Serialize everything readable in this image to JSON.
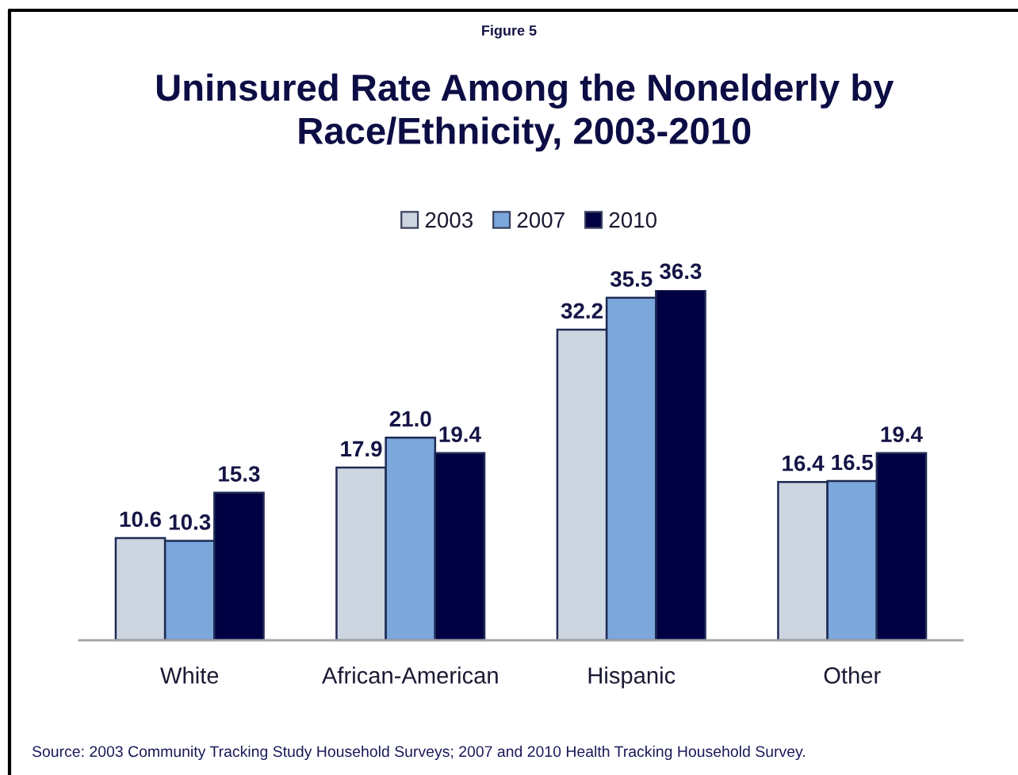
{
  "chart_data": {
    "type": "bar",
    "subtitle": "Figure 5",
    "title": "Uninsured Rate Among the Nonelderly by\nRace/Ethnicity, 2003-2010",
    "categories": [
      "White",
      "African-American",
      "Hispanic",
      "Other"
    ],
    "series": [
      {
        "name": "2003",
        "color": "#cdd6e0",
        "values": [
          10.6,
          17.9,
          32.2,
          16.4
        ],
        "value_labels": [
          "10.6",
          "17.9",
          "32.2",
          "16.4"
        ]
      },
      {
        "name": "2007",
        "color": "#7ba7db",
        "values": [
          10.3,
          21.0,
          35.5,
          16.5
        ],
        "value_labels": [
          "10.3",
          "21.0",
          "35.5",
          "16.5"
        ]
      },
      {
        "name": "2010",
        "color": "#000042",
        "values": [
          15.3,
          19.4,
          36.3,
          19.4
        ],
        "value_labels": [
          "15.3",
          "19.4",
          "36.3",
          "19.4"
        ]
      }
    ],
    "legend": "top",
    "tick_labels": "x",
    "annotations": [
      "Source: 2003 Community Tracking Study Household Surveys; 2007 and 2010 Health Tracking Household Survey."
    ]
  }
}
